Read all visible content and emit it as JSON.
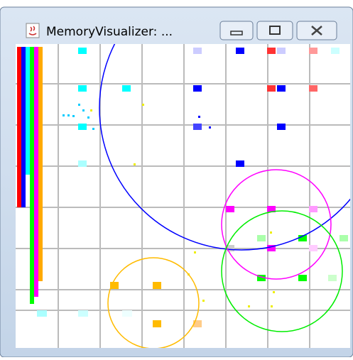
{
  "window": {
    "title": "MemoryVisualizer: ..."
  }
}
